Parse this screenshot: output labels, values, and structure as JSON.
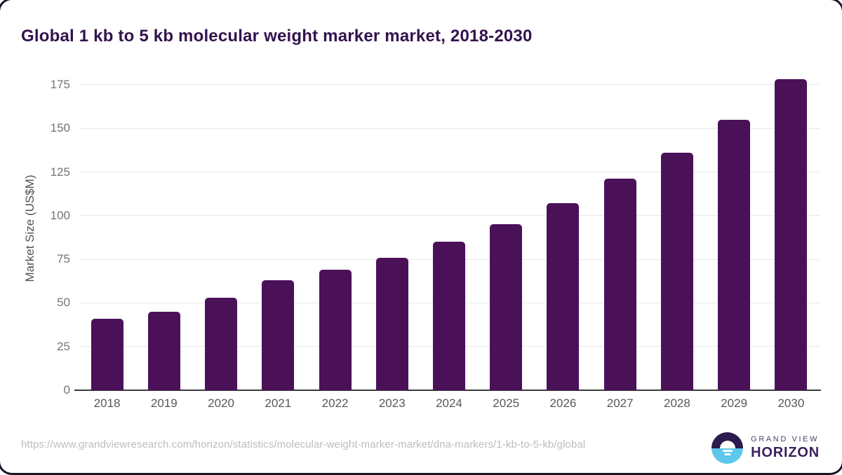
{
  "title": "Global 1 kb to 5 kb molecular weight marker market, 2018-2030",
  "source_url": "https://www.grandviewresearch.com/horizon/statistics/molecular-weight-marker-market/dna-markers/1-kb-to-5-kb/global",
  "brand": {
    "line1": "GRAND VIEW",
    "line2": "HORIZON",
    "icon": "horizon-sun-icon",
    "icon_dark_color": "#2c1a4c",
    "icon_blue_color": "#5cc8eb"
  },
  "colors": {
    "bar": "#4a1158",
    "title_text": "#33134e",
    "gridline": "#e8e8e8",
    "axis_line": "#3a393d",
    "tick_text": "#55575b",
    "url_text": "#bdbdbd"
  },
  "chart_data": {
    "type": "bar",
    "title": "Global 1 kb to 5 kb molecular weight marker market, 2018-2030",
    "categories": [
      "2018",
      "2019",
      "2020",
      "2021",
      "2022",
      "2023",
      "2024",
      "2025",
      "2026",
      "2027",
      "2028",
      "2029",
      "2030"
    ],
    "values": [
      41,
      45,
      53,
      63,
      69,
      76,
      85,
      95,
      107,
      121,
      136,
      155,
      178
    ],
    "xlabel": "",
    "ylabel": "Market Size (US$M)",
    "ylim": [
      0,
      185
    ],
    "yticks": [
      0,
      25,
      50,
      75,
      100,
      125,
      150,
      175
    ],
    "grid": true,
    "legend": "none",
    "bar_color": "#4a1158"
  }
}
